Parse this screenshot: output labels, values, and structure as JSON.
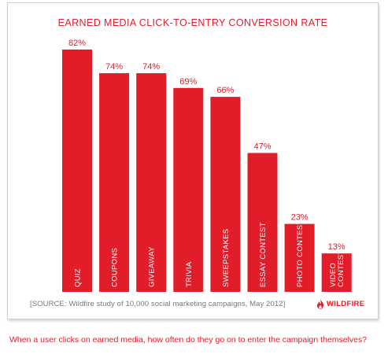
{
  "chart_data": {
    "type": "bar",
    "title": "EARNED MEDIA CLICK-TO-ENTRY CONVERSION RATE",
    "categories": [
      "QUIZ",
      "COUPONS",
      "GIVEAWAY",
      "TRIVIA",
      "SWEEPSTAKES",
      "ESSAY CONTEST",
      "PHOTO CONTEST",
      "VIDEO CONTEST"
    ],
    "category_lines": [
      [
        "QUIZ"
      ],
      [
        "COUPONS"
      ],
      [
        "GIVEAWAY"
      ],
      [
        "TRIVIA"
      ],
      [
        "SWEEPSTAKES"
      ],
      [
        "ESSAY CONTEST"
      ],
      [
        "PHOTO CONTEST"
      ],
      [
        "VIDEO",
        "CONTEST"
      ]
    ],
    "values": [
      82,
      74,
      74,
      69,
      66,
      47,
      23,
      13
    ],
    "data_labels": [
      "82%",
      "74%",
      "74%",
      "69%",
      "66%",
      "47%",
      "23%",
      "13%"
    ],
    "ylim": [
      0,
      82
    ],
    "grid": false,
    "bar_color": "#e21d2a"
  },
  "source": "[SOURCE: Wildfire study of 10,000 social marketing campaigns, May 2012]",
  "logo_text": "WILDFIRE",
  "caption": "When a user clicks on earned media, how often do they go on to enter the campaign themselves?",
  "accent_color": "#e21d2a"
}
